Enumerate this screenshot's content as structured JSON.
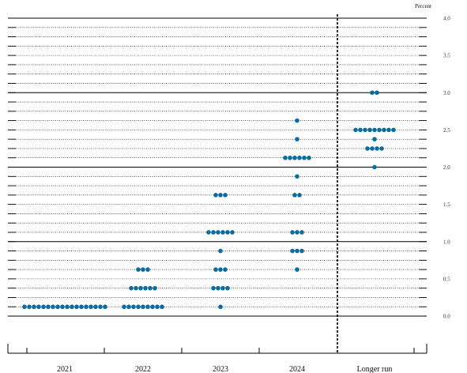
{
  "chart_data": {
    "type": "scatter",
    "chart_kind": "dot-plot",
    "title": "",
    "xlabel": "",
    "ylabel": "",
    "unit_label": "Percent",
    "ylim": [
      0,
      4
    ],
    "yticks": [
      0,
      0.5,
      1,
      1.5,
      2,
      2.5,
      3,
      3.5,
      4
    ],
    "ytick_labels": [
      "0.0",
      "0.5",
      "1.0",
      "1.5",
      "2.0",
      "2.5",
      "3.0",
      "3.5",
      "4.0"
    ],
    "y_minor_step": 0.125,
    "y_major_solid_every": 1.0,
    "categories": [
      "2021",
      "2022",
      "2023",
      "2024",
      "Longer run"
    ],
    "separator_after_category": "2024",
    "dot_color": "#0c6b9e",
    "gridline_color": "#000000",
    "series": [
      {
        "category": "2021",
        "points": [
          {
            "y": 0.125,
            "count": 18
          }
        ]
      },
      {
        "category": "2022",
        "points": [
          {
            "y": 0.125,
            "count": 9
          },
          {
            "y": 0.375,
            "count": 6
          },
          {
            "y": 0.625,
            "count": 3
          }
        ]
      },
      {
        "category": "2023",
        "points": [
          {
            "y": 0.125,
            "count": 1
          },
          {
            "y": 0.375,
            "count": 4
          },
          {
            "y": 0.625,
            "count": 3
          },
          {
            "y": 0.875,
            "count": 1
          },
          {
            "y": 1.125,
            "count": 6
          },
          {
            "y": 1.625,
            "count": 3
          }
        ]
      },
      {
        "category": "2024",
        "points": [
          {
            "y": 0.625,
            "count": 1
          },
          {
            "y": 0.875,
            "count": 3
          },
          {
            "y": 1.125,
            "count": 3
          },
          {
            "y": 1.625,
            "count": 2
          },
          {
            "y": 1.875,
            "count": 1
          },
          {
            "y": 2.125,
            "count": 6
          },
          {
            "y": 2.375,
            "count": 1
          },
          {
            "y": 2.625,
            "count": 1
          }
        ]
      },
      {
        "category": "Longer run",
        "points": [
          {
            "y": 2.0,
            "count": 1
          },
          {
            "y": 2.25,
            "count": 4
          },
          {
            "y": 2.375,
            "count": 1
          },
          {
            "y": 2.5,
            "count": 9
          },
          {
            "y": 3.0,
            "count": 2
          }
        ]
      }
    ]
  }
}
